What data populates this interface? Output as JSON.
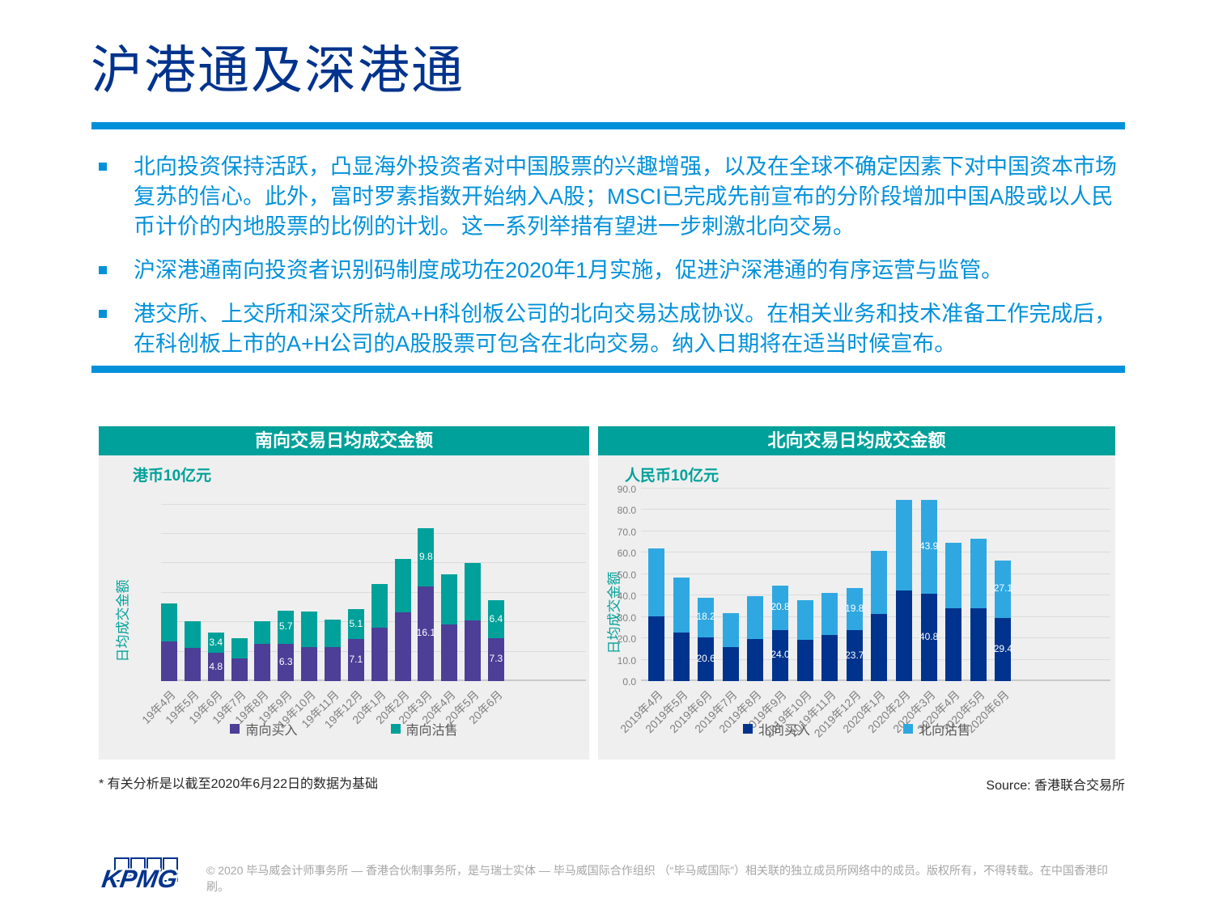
{
  "page": {
    "title": "沪港通及深港通",
    "footnote": "* 有关分析是以截至2020年6月22日的数据为基础",
    "source": "Source: 香港联合交易所",
    "logo": "KPMG",
    "copyright": "© 2020 毕马威会计师事务所 — 香港合伙制事务所，是与瑞士实体 — 毕马威国际合作组织 （“毕马威国际”）相关联的独立成员所网络中的成员。版权所有，不得转载。在中国香港印刷。"
  },
  "bullets": [
    "北向投资保持活跃，凸显海外投资者对中国股票的兴趣增强，以及在全球不确定因素下对中国资本市场复苏的信心。此外，富时罗素指数开始纳入A股；MSCI已完成先前宣布的分阶段增加中国A股或以人民币计价的内地股票的比例的计划。这一系列举措有望进一步刺激北向交易。",
    "沪深港通南向投资者识别码制度成功在2020年1月实施，促进沪深港通的有序运营与监管。",
    "港交所、上交所和深交所就A+H科创板公司的北向交易达成协议。在相关业务和技术准备工作完成后，在科创板上市的A+H公司的A股股票可包含在北向交易。纳入日期将在适当时候宣布。"
  ],
  "colors": {
    "kpmg_blue": "#00338D",
    "light_blue": "#0091DA",
    "teal": "#00A19A",
    "purple": "#4D3E97",
    "bar_light_blue": "#2FA8E1",
    "panel_bg": "#EFEFEF",
    "gridline": "#DBDBDB",
    "tick_text": "#7F7F7F",
    "legend_text": "#595959"
  },
  "chart_data": [
    {
      "type": "bar",
      "stacked": true,
      "title": "南向交易日均成交金额",
      "unit_label": "港币10亿元",
      "ylabel": "日均成交金额",
      "xlabel": "",
      "grid": true,
      "legend_position": "bottom",
      "ylim": [
        0,
        32
      ],
      "gridline_values": [
        5,
        10,
        15,
        20,
        25,
        30
      ],
      "y_ticks": [],
      "categories": [
        "19年4月",
        "19年5月",
        "19年6月",
        "19年7月",
        "19年8月",
        "19年9月",
        "19年10月",
        "19年11月",
        "19年12月",
        "20年1月",
        "20年2月",
        "20年3月",
        "20年4月",
        "20年5月",
        "20年6月"
      ],
      "series": [
        {
          "name": "南向买入",
          "color": "#4D3E97",
          "values": [
            6.8,
            5.6,
            4.8,
            3.9,
            6.3,
            6.3,
            5.8,
            5.8,
            7.1,
            9.0,
            11.7,
            16.1,
            9.6,
            10.3,
            7.3
          ]
        },
        {
          "name": "南向沽售",
          "color": "#00A19A",
          "values": [
            6.4,
            4.6,
            3.4,
            3.4,
            3.9,
            5.7,
            6.0,
            4.6,
            5.1,
            7.5,
            9.0,
            9.8,
            8.5,
            9.7,
            6.4
          ]
        }
      ],
      "data_labels": [
        {
          "index": 2,
          "buy": "4.8",
          "sell": "3.4"
        },
        {
          "index": 5,
          "buy": "6.3",
          "sell": "5.7"
        },
        {
          "index": 8,
          "buy": "7.1",
          "sell": "5.1"
        },
        {
          "index": 11,
          "buy": "16.1",
          "sell": "9.8"
        },
        {
          "index": 14,
          "buy": "7.3",
          "sell": "6.4"
        }
      ]
    },
    {
      "type": "bar",
      "stacked": true,
      "title": "北向交易日均成交金额",
      "unit_label": "人民币10亿元",
      "ylabel": "日均成交金额",
      "xlabel": "",
      "grid": true,
      "legend_position": "bottom",
      "ylim": [
        0,
        90
      ],
      "gridline_values": [
        0,
        10,
        20,
        30,
        40,
        50,
        60,
        70,
        80,
        90
      ],
      "y_ticks": [
        {
          "label": "0.0",
          "value": 0
        },
        {
          "label": "10.0",
          "value": 10
        },
        {
          "label": "20.0",
          "value": 20
        },
        {
          "label": "30.0",
          "value": 30
        },
        {
          "label": "40.0",
          "value": 40
        },
        {
          "label": "50.0",
          "value": 50
        },
        {
          "label": "60.0",
          "value": 60
        },
        {
          "label": "70.0",
          "value": 70
        },
        {
          "label": "80.0",
          "value": 80
        },
        {
          "label": "90.0",
          "value": 90
        }
      ],
      "categories": [
        "2019年4月",
        "2019年5月",
        "2019年6月",
        "2019年7月",
        "2019年8月",
        "2019年9月",
        "2019年10月",
        "2019年11月",
        "2019年12月",
        "2020年1月",
        "2020年2月",
        "2020年3月",
        "2020年4月",
        "2020年5月",
        "2020年6月"
      ],
      "series": [
        {
          "name": "北向买入",
          "color": "#00338D",
          "values": [
            30.3,
            22.6,
            20.6,
            15.9,
            19.5,
            24.0,
            19.4,
            21.7,
            23.7,
            31.5,
            42.2,
            40.8,
            34.1,
            34.2,
            29.4
          ]
        },
        {
          "name": "北向沽售",
          "color": "#2FA8E1",
          "values": [
            31.7,
            25.7,
            18.2,
            16.0,
            20.1,
            20.8,
            18.4,
            19.6,
            19.8,
            29.3,
            42.4,
            43.9,
            30.6,
            32.2,
            27.1
          ]
        }
      ],
      "data_labels": [
        {
          "index": 2,
          "buy": "20.6",
          "sell": "18.2"
        },
        {
          "index": 5,
          "buy": "24.0",
          "sell": "20.8"
        },
        {
          "index": 8,
          "buy": "23.7",
          "sell": "19.8"
        },
        {
          "index": 11,
          "buy": "40.8",
          "sell": "43.9"
        },
        {
          "index": 14,
          "buy": "29.4",
          "sell": "27.1"
        }
      ]
    }
  ]
}
